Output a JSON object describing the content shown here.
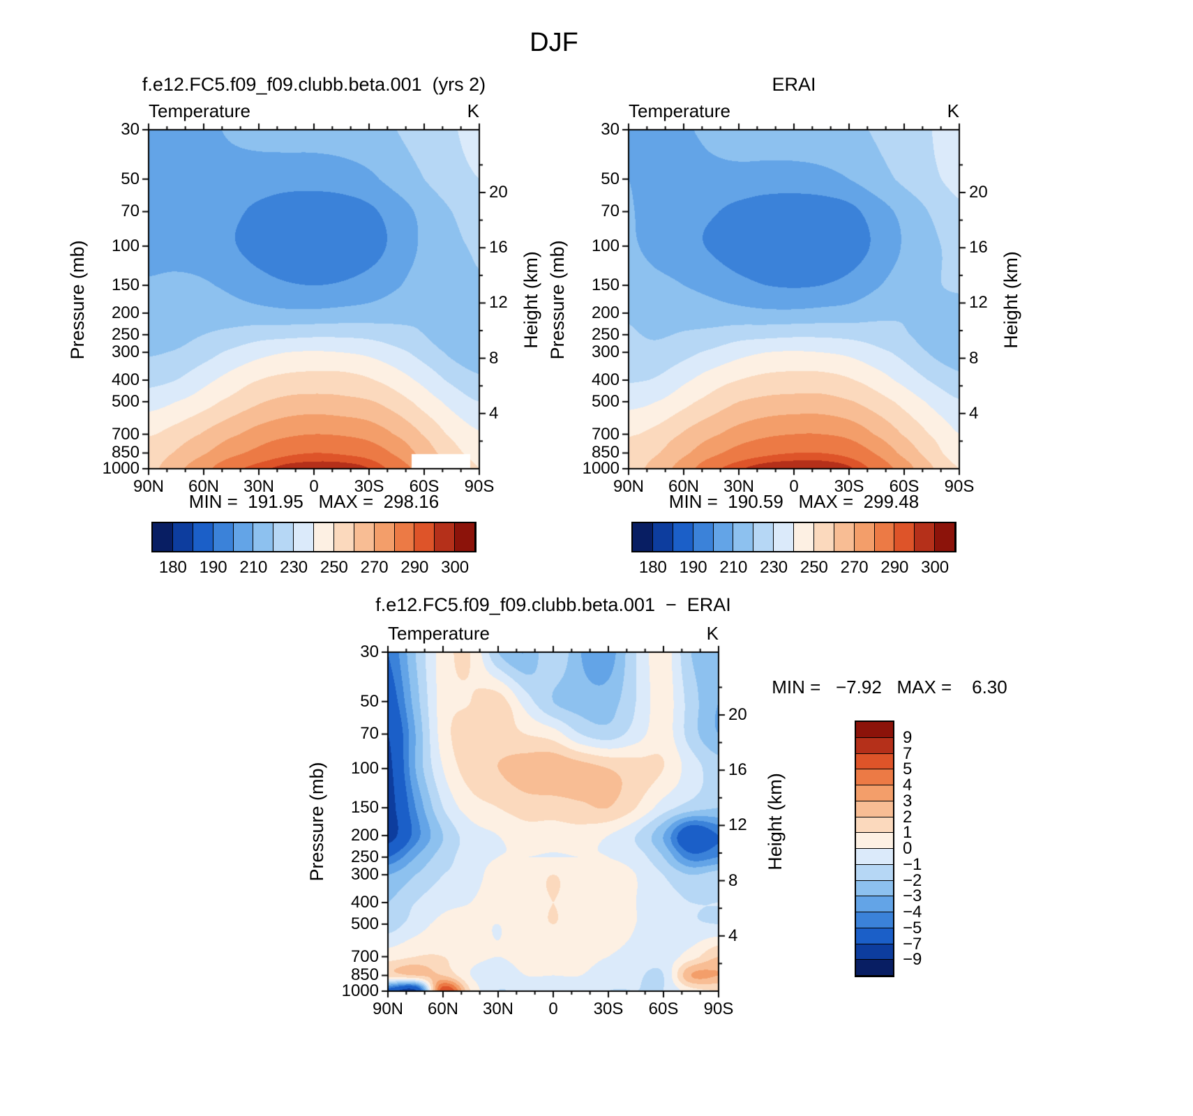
{
  "page_title": "DJF",
  "axis": {
    "pressure_label": "Pressure (mb)",
    "height_label": "Height (km)",
    "pressure_ticks": [
      30,
      50,
      70,
      100,
      150,
      200,
      250,
      300,
      400,
      500,
      700,
      850,
      1000
    ],
    "height_ticks": [
      20,
      16,
      12,
      8,
      4
    ],
    "lat_ticks": [
      "90N",
      "60N",
      "30N",
      "0",
      "30S",
      "60S",
      "90S"
    ],
    "lat_tick_degrees": [
      90,
      60,
      30,
      0,
      -30,
      -60,
      -90
    ]
  },
  "colorscale": {
    "palette": [
      "#081e63",
      "#0d3d9e",
      "#1b5fc8",
      "#3b82d9",
      "#63a4e7",
      "#8dc1ef",
      "#b6d7f5",
      "#dbeafa",
      "#fdf0e3",
      "#fbd9bd",
      "#f8bd94",
      "#f39e6a",
      "#ec7a45",
      "#de5429",
      "#b5301a",
      "#8c130a"
    ],
    "temp": [
      180,
      185,
      190,
      200,
      210,
      220,
      230,
      240,
      250,
      260,
      270,
      280,
      290,
      295,
      300
    ],
    "diff": [
      -9,
      -7,
      -5,
      -4,
      -3,
      -2,
      -1,
      0,
      1,
      2,
      3,
      4,
      5,
      7,
      9
    ]
  },
  "chart_data": [
    {
      "id": "model",
      "type": "filled-contour",
      "title": "f.e12.FC5.f09_f09.clubb.beta.001  (yrs 2)",
      "field": "Temperature",
      "units": "K",
      "stats": "MIN =  191.95   MAX =  298.16",
      "min": 191.95,
      "max": 298.16,
      "scale": "temp",
      "colorbar_labels": [
        "180",
        "190",
        "210",
        "230",
        "250",
        "270",
        "290",
        "300"
      ],
      "colorbar_label_idx": [
        0,
        2,
        4,
        6,
        8,
        10,
        12,
        14
      ],
      "lats": [
        90,
        75,
        60,
        45,
        30,
        15,
        0,
        -15,
        -30,
        -45,
        -60,
        -75,
        -90
      ],
      "pressures": [
        30,
        50,
        70,
        100,
        150,
        200,
        250,
        300,
        400,
        500,
        700,
        850,
        1000
      ],
      "mask": {
        "lat_min": -85,
        "lat_max": -53,
        "p_min": 862
      },
      "values": [
        [
          205,
          206,
          208,
          211,
          213,
          214,
          214,
          215,
          217,
          220,
          224,
          229,
          233
        ],
        [
          204,
          205,
          206,
          206,
          205,
          204,
          204,
          205,
          208,
          214,
          220,
          226,
          230
        ],
        [
          205,
          205,
          205,
          202,
          198,
          195,
          194,
          195,
          198,
          205,
          213,
          220,
          225
        ],
        [
          206,
          206,
          205,
          201,
          196,
          192,
          192,
          193,
          196,
          203,
          212,
          218,
          221
        ],
        [
          211,
          212,
          211,
          208,
          204,
          201,
          200,
          201,
          204,
          209,
          215,
          218,
          219
        ],
        [
          213,
          214,
          215,
          214,
          213,
          212,
          212,
          213,
          214,
          216,
          218,
          216,
          213
        ],
        [
          216,
          217,
          220,
          223,
          226,
          227,
          228,
          228,
          227,
          224,
          220,
          214,
          210
        ],
        [
          219,
          221,
          226,
          232,
          237,
          240,
          241,
          240,
          238,
          233,
          226,
          218,
          213
        ],
        [
          227,
          230,
          237,
          244,
          250,
          253,
          254,
          254,
          251,
          245,
          237,
          228,
          222
        ],
        [
          236,
          240,
          246,
          253,
          259,
          263,
          264,
          263,
          261,
          255,
          246,
          237,
          230
        ],
        [
          249,
          254,
          261,
          268,
          274,
          278,
          280,
          279,
          276,
          269,
          259,
          248,
          241
        ],
        [
          254,
          261,
          269,
          277,
          283,
          288,
          290,
          289,
          286,
          278,
          266,
          254,
          246
        ],
        [
          257,
          267,
          277,
          287,
          293,
          297,
          298,
          298,
          295,
          286,
          274,
          260,
          250
        ]
      ]
    },
    {
      "id": "erai",
      "type": "filled-contour",
      "title": "ERAI",
      "field": "Temperature",
      "units": "K",
      "stats": "MIN =  190.59   MAX =  299.48",
      "min": 190.59,
      "max": 299.48,
      "scale": "temp",
      "colorbar_labels": [
        "180",
        "190",
        "210",
        "230",
        "250",
        "270",
        "290",
        "300"
      ],
      "colorbar_label_idx": [
        0,
        2,
        4,
        6,
        8,
        10,
        12,
        14
      ],
      "lats": [
        90,
        75,
        60,
        45,
        30,
        15,
        0,
        -15,
        -30,
        -45,
        -60,
        -75,
        -90
      ],
      "pressures": [
        30,
        50,
        70,
        100,
        150,
        200,
        250,
        300,
        400,
        500,
        700,
        850,
        1000
      ],
      "values": [
        [
          209,
          208,
          209,
          212,
          214,
          215,
          215,
          216,
          218,
          221,
          225,
          230,
          236
        ],
        [
          210,
          206,
          205,
          207,
          207,
          206,
          206,
          207,
          210,
          216,
          222,
          228,
          233
        ],
        [
          211,
          205,
          203,
          201,
          197,
          194,
          193,
          194,
          197,
          205,
          213,
          221,
          228
        ],
        [
          212,
          206,
          203,
          199,
          194,
          191,
          191,
          192,
          195,
          202,
          211,
          218,
          223
        ],
        [
          217,
          213,
          210,
          207,
          203,
          200,
          199,
          200,
          203,
          209,
          215,
          219,
          221
        ],
        [
          219,
          216,
          215,
          214,
          213,
          212,
          212,
          213,
          214,
          217,
          219,
          218,
          217
        ],
        [
          221,
          219,
          221,
          223,
          226,
          227,
          228,
          228,
          227,
          225,
          221,
          216,
          212
        ],
        [
          223,
          223,
          227,
          232,
          237,
          240,
          241,
          240,
          238,
          233,
          227,
          219,
          214
        ],
        [
          229,
          231,
          238,
          245,
          250,
          253,
          254,
          254,
          251,
          245,
          237,
          229,
          223
        ],
        [
          237,
          240,
          247,
          254,
          260,
          263,
          264,
          264,
          261,
          255,
          247,
          238,
          231
        ],
        [
          249,
          253,
          261,
          268,
          274,
          278,
          280,
          280,
          277,
          269,
          259,
          249,
          240
        ],
        [
          253,
          259,
          268,
          277,
          284,
          288,
          290,
          290,
          287,
          279,
          267,
          255,
          244
        ],
        [
          256,
          264,
          275,
          287,
          294,
          298,
          299,
          299,
          296,
          287,
          275,
          261,
          250
        ]
      ]
    },
    {
      "id": "diff",
      "type": "filled-contour",
      "title": "f.e12.FC5.f09_f09.clubb.beta.001  −  ERAI",
      "field": "Temperature",
      "units": "K",
      "stats": "MIN =   −7.92   MAX =    6.30",
      "min": -7.92,
      "max": 6.3,
      "scale": "diff",
      "colorbar_labels": [
        "9",
        "7",
        "5",
        "4",
        "3",
        "2",
        "1",
        "0",
        "−1",
        "−2",
        "−3",
        "−4",
        "−5",
        "−7",
        "−9"
      ],
      "lats": [
        90,
        75,
        60,
        45,
        30,
        15,
        0,
        -15,
        -30,
        -45,
        -60,
        -75,
        -90
      ],
      "pressures": [
        30,
        50,
        70,
        100,
        150,
        200,
        250,
        300,
        400,
        500,
        700,
        850,
        1000
      ],
      "values": [
        [
          -5,
          -2,
          0.5,
          1,
          -2,
          -3,
          -1,
          -3,
          -3.5,
          -1,
          0.5,
          -2,
          -2.5
        ],
        [
          -6,
          -2.5,
          0.5,
          1,
          1.5,
          -0.5,
          -2,
          -2.5,
          -2.5,
          -1,
          0.5,
          -1.5,
          -3
        ],
        [
          -7,
          -3,
          0.5,
          1.5,
          1.5,
          1,
          0.5,
          -1,
          -1.5,
          -0.5,
          0.5,
          -1.5,
          -3
        ],
        [
          -7.5,
          -3,
          0,
          1.5,
          2,
          2.5,
          2.8,
          2.5,
          2,
          1.5,
          1,
          -0.5,
          -1.5
        ],
        [
          -7.8,
          -4,
          -1,
          0.5,
          1,
          1.5,
          1.5,
          1.8,
          2,
          1,
          -0.5,
          -1.5,
          -2
        ],
        [
          -7.9,
          -4.5,
          -2,
          -0.5,
          0,
          0.5,
          0.5,
          0.5,
          0,
          -1,
          -3,
          -6.5,
          -5
        ],
        [
          -5,
          -3,
          -1.5,
          -0.5,
          0,
          0,
          0,
          0,
          0,
          -0.5,
          -2,
          -4.5,
          -4
        ],
        [
          -3,
          -2,
          -1,
          -0.5,
          0.5,
          0.5,
          1,
          0.5,
          0.5,
          0,
          -1,
          -2,
          -1.5
        ],
        [
          -2,
          -1,
          -0.3,
          0,
          0.5,
          0.5,
          1,
          0.5,
          0.5,
          0,
          -0.5,
          -1,
          -1
        ],
        [
          -1.5,
          -0.5,
          0.3,
          0.3,
          0,
          0.5,
          1,
          0.5,
          0.5,
          0,
          -0.5,
          -0.8,
          -1
        ],
        [
          0.5,
          1,
          1,
          0.3,
          0,
          0.3,
          0.5,
          0.3,
          0,
          -0.3,
          -0.5,
          0.5,
          2
        ],
        [
          1.5,
          2,
          2,
          0,
          -0.5,
          0,
          0,
          0,
          -0.5,
          -0.8,
          -1,
          3,
          3
        ],
        [
          -6,
          -7.5,
          6,
          1,
          -1,
          -0.5,
          -0.5,
          -0.5,
          -1,
          -1,
          -1,
          0.5,
          1
        ]
      ]
    }
  ]
}
